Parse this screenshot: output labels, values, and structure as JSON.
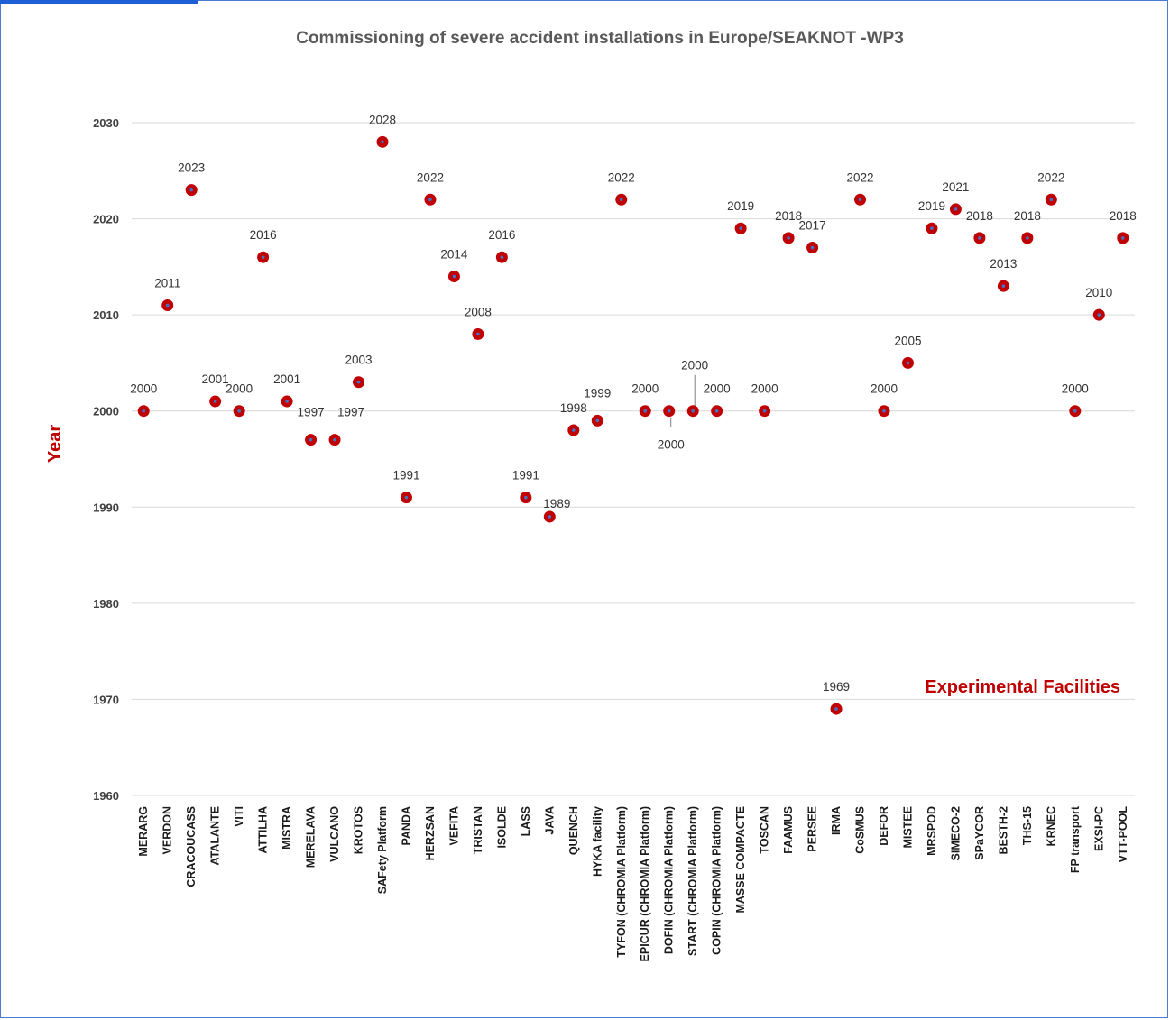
{
  "chart_data": {
    "type": "scatter",
    "title": "Commissioning  of severe accident installations in Europe/SEAKNOT -WP3",
    "xlabel": "Experimental Facilities",
    "ylabel": "Year",
    "ylim": [
      1960,
      2030
    ],
    "yticks": [
      "1960",
      "1970",
      "1980",
      "1990",
      "2000",
      "2010",
      "2020",
      "2030"
    ],
    "grid": true,
    "marker_color": "#c00000",
    "marker_center_color": "#4472c4",
    "axis_title_color": "#c00000",
    "categories": [
      "MERARG",
      "VERDON",
      "CRACOUCASS",
      "ATALANTE",
      "VITI",
      "ATTILHA",
      "MISTRA",
      "MERELAVA",
      "VULCANO",
      "KROTOS",
      "SAFety Platform",
      "PANDA",
      "HERZSAN",
      "VEFITA",
      "TRISTAN",
      "ISOLDE",
      "LASS",
      "JAVA",
      "QUENCH",
      "HYKA facility",
      "TYFON (CHROMIA Platform)",
      "EPICUR (CHROMIA  Platform)",
      "DOFIN  (CHROMIA Platform)",
      "START  (CHROMIA Platform)",
      "COPIN  (CHROMIA Platform)",
      "MASSE COMPACTE",
      "TOSCAN",
      "FAAMUS",
      "PERSEE",
      "IRMA",
      "CoSMUS",
      "DEFOR",
      "MISTEE",
      "MRSPOD",
      "SIMECO-2",
      "SPaYCOR",
      "BESTH-2",
      "THS-15",
      "KRNEC",
      "FP transport",
      "EXSI-PC",
      "VTT-POOL"
    ],
    "values": [
      2000,
      2011,
      2023,
      2001,
      2000,
      2016,
      2001,
      1997,
      1997,
      2003,
      2028,
      1991,
      2022,
      2014,
      2008,
      2016,
      1991,
      1989,
      1998,
      1999,
      2022,
      2000,
      2000,
      2000,
      2000,
      2019,
      2000,
      2018,
      2017,
      1969,
      2022,
      2000,
      2005,
      2019,
      2021,
      2018,
      2013,
      2018,
      2022,
      2000,
      2010,
      2018
    ],
    "data_labels": [
      "2000",
      "2011",
      "2023",
      "2001",
      "2000",
      "2016",
      "2001",
      "1997",
      "1997",
      "2003",
      "2028",
      "1991",
      "2022",
      "2014",
      "2008",
      "2016",
      "1991",
      "1989",
      "1998",
      "1999",
      "2022",
      "2000",
      "2000",
      "2000",
      "2000",
      "2019",
      "2000",
      "2018",
      "2017",
      "1969",
      "2022",
      "2000",
      "2005",
      "2019",
      "2021",
      "2018",
      "2013",
      "2018",
      "2022",
      "2000",
      "2010",
      "2018"
    ]
  }
}
